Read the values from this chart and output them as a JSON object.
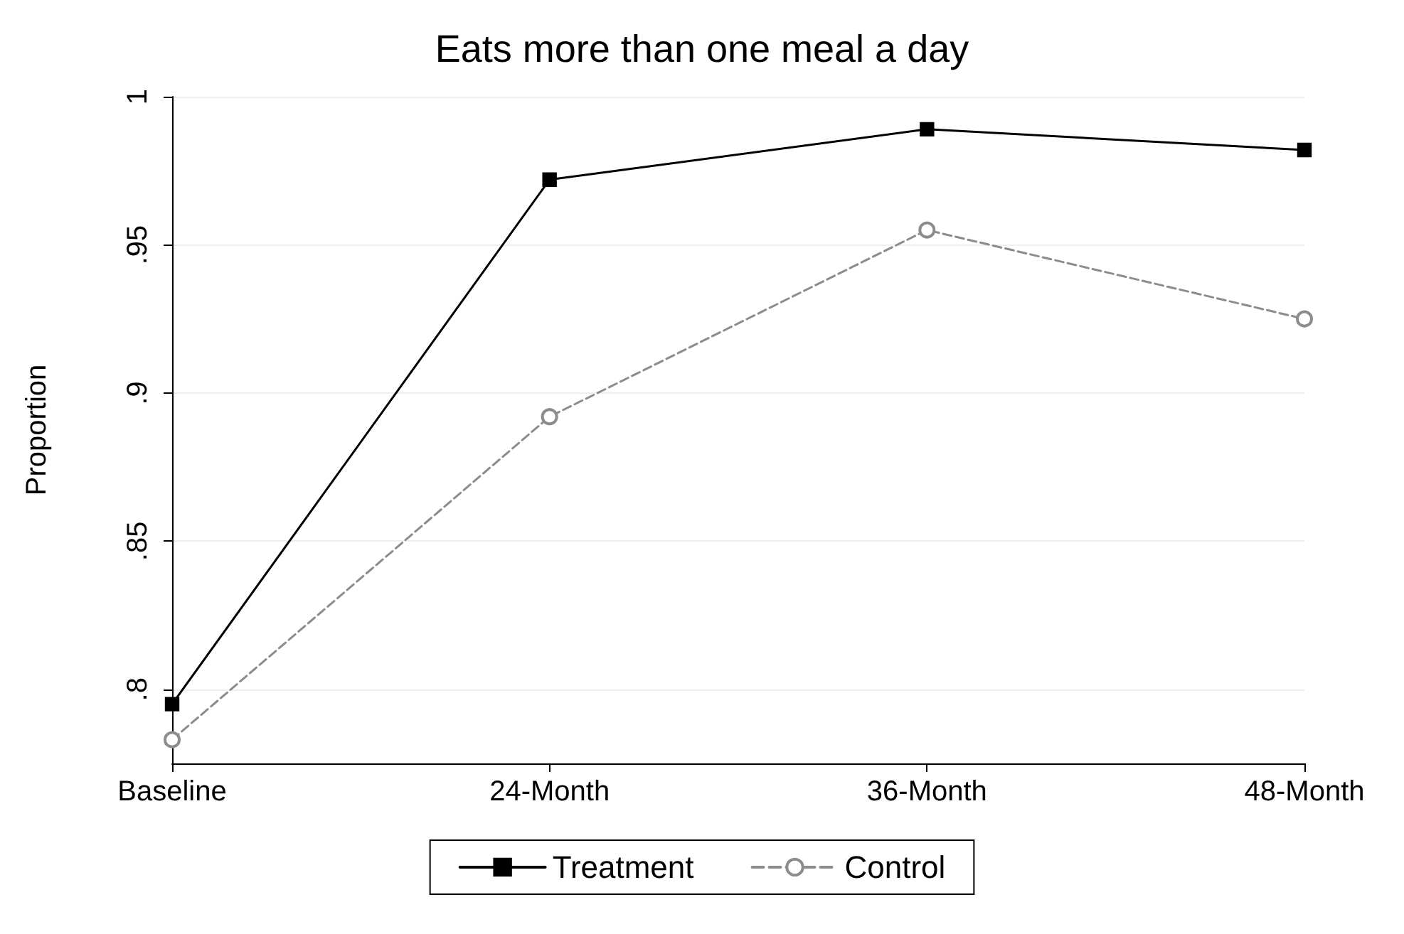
{
  "chart_data": {
    "type": "line",
    "title": "Eats more than one meal a day",
    "ylabel": "Proportion",
    "categories": [
      "Baseline",
      "24-Month",
      "36-Month",
      "48-Month"
    ],
    "series": [
      {
        "name": "Treatment",
        "color": "#000000",
        "marker": "square",
        "line_style": "solid",
        "values": [
          0.795,
          0.972,
          0.989,
          0.982
        ]
      },
      {
        "name": "Control",
        "color": "#8c8c8c",
        "marker": "circle",
        "line_style": "dashed",
        "values": [
          0.783,
          0.892,
          0.955,
          0.925
        ]
      }
    ],
    "ylim": [
      0.775,
      1.0
    ],
    "yticks": [
      {
        "value": 0.8,
        "label": ".8"
      },
      {
        "value": 0.85,
        "label": ".85"
      },
      {
        "value": 0.9,
        "label": ".9"
      },
      {
        "value": 0.95,
        "label": ".95"
      },
      1
    ],
    "grid": "y",
    "legend": "bottom"
  }
}
